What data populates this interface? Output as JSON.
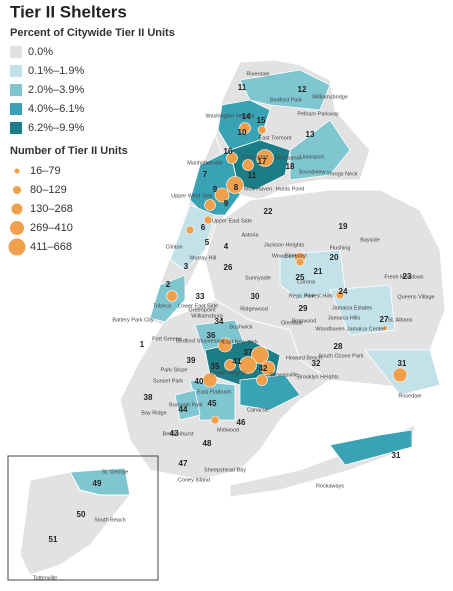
{
  "title": "Tier II Shelters",
  "percent_legend": {
    "title": "Percent of Citywide Tier II Units",
    "items": [
      {
        "label": "0.0%",
        "color": "#e2e2e2"
      },
      {
        "label": "0.1%–1.9%",
        "color": "#c3e1e8"
      },
      {
        "label": "2.0%–3.9%",
        "color": "#80c6d1"
      },
      {
        "label": "4.0%–6.1%",
        "color": "#3aa2b5"
      },
      {
        "label": "6.2%–9.9%",
        "color": "#1d7d86"
      }
    ]
  },
  "units_legend": {
    "title": "Number of Tier II Units",
    "color": "#f0a04b",
    "items": [
      "16–79",
      "80–129",
      "130–268",
      "269–410",
      "411–668"
    ]
  },
  "districts": [
    11,
    12,
    14,
    15,
    10,
    13,
    16,
    17,
    18,
    7,
    9,
    8,
    9,
    11,
    6,
    22,
    19,
    20,
    4,
    5,
    3,
    2,
    1,
    26,
    25,
    21,
    23,
    24,
    33,
    30,
    29,
    27,
    34,
    36,
    28,
    39,
    35,
    37,
    41,
    32,
    42,
    31,
    40,
    38,
    45,
    44,
    46,
    43,
    48,
    47,
    31,
    49,
    50,
    51
  ],
  "neighborhoods": [
    "Riverdale",
    "Williamsbridge",
    "Bedford Park",
    "Pelham Parkway",
    "Washington Heights",
    "East Tremont",
    "Concourse",
    "Morrisania",
    "Unionport",
    "Soundview",
    "Throgs Neck",
    "Manhattanville",
    "Hunts Point",
    "Mott Haven",
    "Upper West Side",
    "Upper East Side",
    "Astoria",
    "Jackson Heights",
    "Elmhurst",
    "Woodside",
    "Flushing",
    "Bayside",
    "Clinton",
    "Murray Hill",
    "Fresh Meadows",
    "Queens Village",
    "Sunnyside",
    "Corona",
    "Forest Hills",
    "Rego Park",
    "Jamaica Estates",
    "Jamaica Hills",
    "Jamaica Center",
    "St. Albans",
    "Battery Park City",
    "Tribeca",
    "Lower East Side",
    "Greenpoint",
    "Ridgewood",
    "Glendale",
    "Briarwood",
    "Williamsburg",
    "Bushwick",
    "Woodhaven",
    "South Ozone Park",
    "Brooklyn Heights",
    "Fort Greene",
    "Bedford Stuyvesant",
    "East New York",
    "Howard Beach",
    "Park Slope",
    "Crown Heights",
    "Brownsville",
    "Rosedale",
    "Sunset Park",
    "Borough Park",
    "East Flatbush",
    "Canarsie",
    "Bay Ridge",
    "Midwood",
    "Bensonhurst",
    "Sheepshead Bay",
    "Coney Island",
    "Rockaways",
    "St. George",
    "South Beach",
    "Tottenville"
  ]
}
